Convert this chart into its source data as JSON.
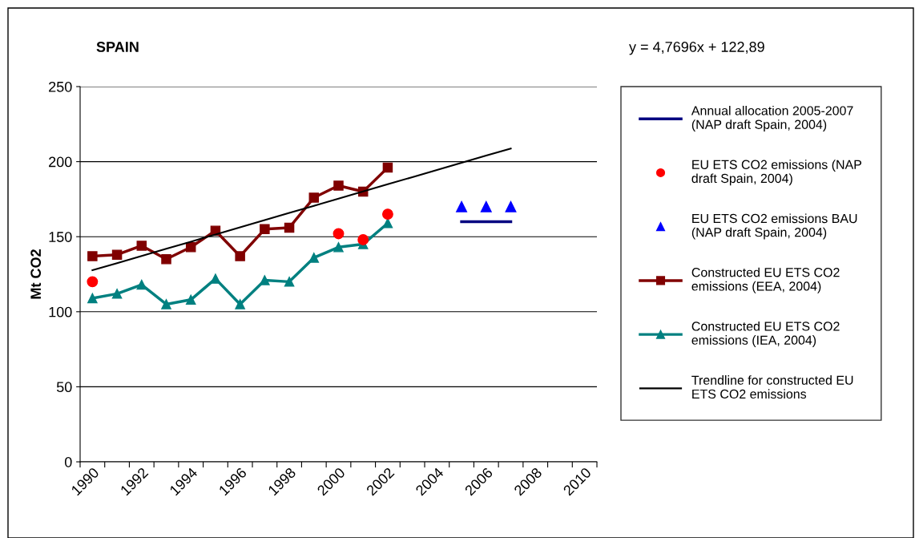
{
  "chart_data": {
    "type": "line",
    "title": "SPAIN",
    "ylabel": "Mt CO2",
    "annotations": [
      "y = 4,7696x + 122,89"
    ],
    "categories": [
      "1990",
      null,
      "1992",
      null,
      "1994",
      null,
      "1996",
      null,
      "1998",
      null,
      "2000",
      null,
      "2002",
      null,
      "2004",
      null,
      "2006",
      null,
      "2008",
      null,
      "2010"
    ],
    "ylim": [
      0,
      250
    ],
    "yticks": [
      0,
      50,
      100,
      150,
      200,
      250
    ],
    "grid": "y",
    "legend": "right",
    "series": [
      {
        "name": "Annual allocation 2005-2007\n(NAP draft Spain, 2004)",
        "marker": "none",
        "color": "#000080",
        "values": [
          null,
          null,
          null,
          null,
          null,
          null,
          null,
          null,
          null,
          null,
          null,
          null,
          null,
          null,
          null,
          160,
          160,
          160,
          null,
          null,
          null
        ]
      },
      {
        "name": "EU ETS CO2 emissions (NAP\ndraft Spain, 2004)",
        "type": "scatter",
        "marker": "circle",
        "color": "#ff0000",
        "values": [
          120,
          null,
          null,
          null,
          null,
          null,
          null,
          null,
          null,
          null,
          152,
          148,
          165,
          null,
          null,
          null,
          null,
          null,
          null,
          null,
          null
        ]
      },
      {
        "name": "EU ETS CO2 emissions BAU\n(NAP draft Spain, 2004)",
        "type": "scatter",
        "marker": "triangle",
        "color": "#0000ff",
        "values": [
          null,
          null,
          null,
          null,
          null,
          null,
          null,
          null,
          null,
          null,
          null,
          null,
          null,
          null,
          null,
          170,
          170,
          170,
          null,
          null,
          null
        ]
      },
      {
        "name": "Constructed EU ETS CO2\nemissions (EEA, 2004)",
        "marker": "square",
        "color": "#800000",
        "values": [
          137,
          138,
          144,
          135,
          143,
          154,
          137,
          155,
          156,
          176,
          184,
          180,
          196,
          null,
          null,
          null,
          null,
          null,
          null,
          null,
          null
        ]
      },
      {
        "name": "Constructed EU ETS CO2\nemissions (IEA, 2004)",
        "marker": "triangle",
        "color": "#008080",
        "values": [
          109,
          112,
          118,
          105,
          108,
          122,
          105,
          121,
          120,
          136,
          143,
          145,
          159,
          null,
          null,
          null,
          null,
          null,
          null,
          null,
          null
        ]
      },
      {
        "name": "Trendline for constructed EU\nETS CO2 emissions",
        "marker": "none",
        "color": "#000000",
        "values": [
          127.7,
          132.4,
          137.2,
          142,
          146.7,
          151.5,
          156.3,
          161.0,
          165.8,
          170.6,
          175.4,
          180.1,
          184.9,
          189.7,
          194.4,
          199.2,
          204.0,
          208.7,
          null,
          null,
          null
        ]
      }
    ]
  }
}
